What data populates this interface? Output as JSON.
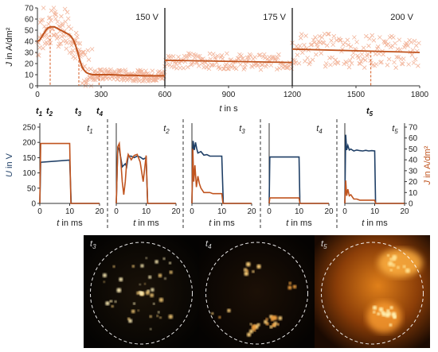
{
  "colors": {
    "voltage": "#1f3f66",
    "current": "#c0541f",
    "scatter": "#f2b49a",
    "dash": "#d65a20"
  },
  "chart_data": [
    {
      "type": "scatter",
      "ylabel": "J in A/dm²",
      "xlabel": "t in s",
      "xlim": [
        0,
        1800
      ],
      "ylim": [
        0,
        70
      ],
      "xticks": [
        "0",
        "300",
        "600",
        "900",
        "1200",
        "1500",
        "1800"
      ],
      "yticks": [
        "0",
        "10",
        "20",
        "30",
        "40",
        "50",
        "60",
        "70"
      ],
      "stage_labels": [
        "150 V",
        "175 V",
        "200 V"
      ],
      "stage_boundaries": [
        600,
        1200
      ],
      "time_markers": [
        {
          "label": "t1",
          "t": 0
        },
        {
          "label": "t2",
          "t": 60
        },
        {
          "label": "t3",
          "t": 195
        },
        {
          "label": "t4",
          "t": 290
        },
        {
          "label": "t5",
          "t": 1570
        }
      ],
      "series": [
        {
          "values_x": [
            0,
            10,
            20,
            30,
            40,
            50,
            60,
            70,
            80,
            90,
            100,
            110,
            120,
            130,
            140,
            150,
            160,
            170,
            180,
            190,
            200,
            210,
            220,
            230,
            240,
            260,
            280,
            300,
            350,
            400,
            450,
            500,
            550,
            600
          ],
          "values_y": [
            40,
            41,
            44,
            47,
            50,
            52,
            53,
            53,
            53,
            52,
            51,
            50,
            49,
            48,
            47,
            46,
            44,
            41,
            36,
            30,
            23,
            17,
            14,
            12,
            11,
            10,
            10,
            10,
            10,
            9.5,
            9.5,
            9,
            9,
            9
          ]
        },
        {
          "values_x": [
            600,
            1200
          ],
          "values_y": [
            23,
            21
          ]
        },
        {
          "values_x": [
            1200,
            1800
          ],
          "values_y": [
            33,
            30
          ]
        }
      ]
    },
    {
      "type": "line",
      "panels": [
        "t1",
        "t2",
        "t3",
        "t4",
        "t5"
      ],
      "xlabel": "t in ms",
      "ylabel_left": "U in V",
      "ylabel_right": "J in A/dm²",
      "xlim": [
        0,
        20
      ],
      "xticks": [
        "0",
        "10",
        "20"
      ],
      "ylim_left": [
        0,
        250
      ],
      "yticks_left": [
        "0",
        "50",
        "100",
        "150",
        "200",
        "250"
      ],
      "ylim_right": [
        0,
        70
      ],
      "yticks_right": [
        "0",
        "10",
        "20",
        "30",
        "40",
        "50",
        "60",
        "70"
      ],
      "series_U": [
        {
          "x": [
            0,
            0.3,
            10,
            10.5,
            20
          ],
          "y": [
            0,
            135,
            142,
            0,
            0
          ]
        },
        {
          "x": [
            0,
            0.5,
            1,
            1.5,
            2,
            3,
            3.5,
            4,
            5,
            6,
            7,
            8,
            9,
            10,
            10.5,
            20
          ],
          "y": [
            0,
            185,
            175,
            150,
            120,
            130,
            120,
            155,
            155,
            150,
            155,
            152,
            145,
            150,
            0,
            0
          ]
        },
        {
          "x": [
            0,
            0.4,
            0.8,
            1.2,
            1.6,
            2,
            3,
            4,
            5,
            6,
            7,
            8,
            9,
            10,
            10.5,
            20
          ],
          "y": [
            0,
            205,
            175,
            200,
            180,
            165,
            170,
            158,
            160,
            155,
            155,
            155,
            155,
            155,
            0,
            0
          ]
        },
        {
          "x": [
            0,
            0.2,
            10,
            10.3,
            20
          ],
          "y": [
            0,
            152,
            152,
            0,
            0
          ]
        },
        {
          "x": [
            0,
            0.3,
            0.6,
            1,
            1.5,
            2,
            3,
            4,
            5,
            6,
            7,
            8,
            9,
            10,
            10.3,
            20
          ],
          "y": [
            0,
            225,
            175,
            190,
            175,
            178,
            172,
            175,
            173,
            172,
            174,
            172,
            173,
            172,
            0,
            0
          ]
        }
      ],
      "series_J": [
        {
          "x": [
            0,
            0.3,
            10,
            10.4,
            20
          ],
          "y": [
            0,
            55,
            55,
            0,
            0
          ]
        },
        {
          "x": [
            0,
            0.5,
            1,
            1.5,
            2,
            2.5,
            3,
            3.5,
            4,
            5,
            6,
            7,
            8,
            9,
            10,
            10.5,
            20
          ],
          "y": [
            0,
            52,
            55,
            40,
            20,
            8,
            20,
            38,
            45,
            40,
            44,
            45,
            38,
            20,
            44,
            0,
            0
          ]
        },
        {
          "x": [
            0,
            0.3,
            0.6,
            1,
            1.5,
            2,
            2.5,
            3,
            4,
            5,
            6,
            7,
            8,
            9,
            10,
            10.4,
            20
          ],
          "y": [
            0,
            50,
            20,
            35,
            15,
            25,
            18,
            14,
            10,
            10,
            10,
            9,
            9,
            9,
            9,
            0,
            0
          ]
        },
        {
          "x": [
            0,
            0.2,
            10,
            10.3,
            20
          ],
          "y": [
            0,
            5,
            5,
            0,
            0
          ]
        },
        {
          "x": [
            0,
            0.3,
            0.6,
            1,
            1.5,
            2,
            3,
            4,
            5,
            6,
            7,
            8,
            9,
            10,
            10.3,
            20
          ],
          "y": [
            0,
            21,
            7,
            13,
            7,
            8,
            4,
            4,
            3,
            3,
            3,
            3,
            3,
            3,
            0,
            0
          ]
        }
      ]
    }
  ],
  "photos": [
    "t3",
    "t4",
    "t5"
  ]
}
